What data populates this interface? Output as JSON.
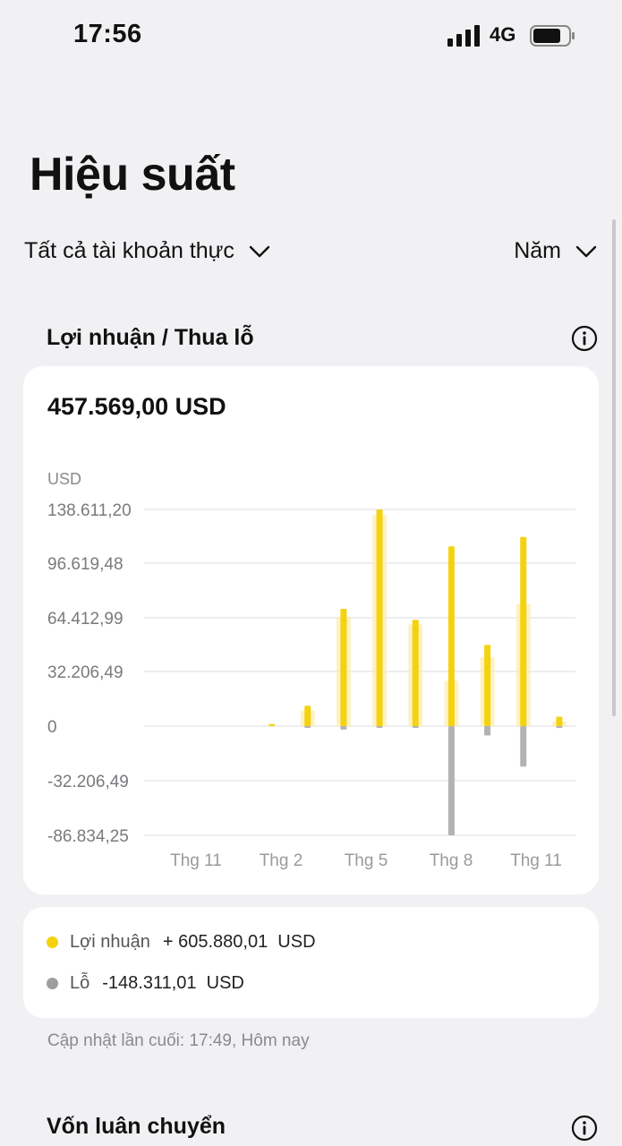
{
  "status_bar": {
    "time": "17:56",
    "network": "4G"
  },
  "page": {
    "title": "Hiệu suất"
  },
  "filters": {
    "account": "Tất cả tài khoản thực",
    "period": "Năm"
  },
  "profit_section": {
    "title": "Lợi nhuận / Thua lỗ",
    "total": "457.569,00  USD"
  },
  "chart_data": {
    "type": "bar",
    "unit_label": "USD",
    "y_ticks": [
      "138.611,20",
      "96.619,48",
      "64.412,99",
      "32.206,49",
      "0",
      "-32.206,49",
      "-86.834,25"
    ],
    "x_labels": [
      "Thg 11",
      "Thg 2",
      "Thg 5",
      "Thg 8",
      "Thg 11"
    ],
    "series": [
      {
        "name": "Lợi nhuận",
        "color": "#f5d20f",
        "values": [
          0,
          0,
          0,
          1300,
          13000,
          75000,
          138611.2,
          68000,
          115000,
          52000,
          121000,
          6000
        ]
      },
      {
        "name": "Lỗ",
        "color": "#9e9e9e",
        "values": [
          0,
          0,
          0,
          0,
          -1000,
          -2800,
          -500,
          -500,
          -86834.25,
          -7500,
          -32206.49,
          -1500
        ]
      }
    ],
    "background_bars": [
      0,
      0,
      0,
      0,
      10000,
      70000,
      135000,
      65000,
      29000,
      44000,
      78000,
      3000
    ],
    "grid": true
  },
  "legend": {
    "profit_label": "Lợi nhuận",
    "profit_value": "+ 605.880,01  USD",
    "loss_label": "Lỗ",
    "loss_value": "-148.311,01  USD"
  },
  "updated_text": "Cập nhật lần cuối: 17:49, Hôm nay",
  "capital_section": {
    "title": "Vốn luân chuyển"
  },
  "colors": {
    "background": "#f1f1f3",
    "card": "#ffffff",
    "profit": "#f5d20f",
    "loss": "#9e9e9e"
  }
}
